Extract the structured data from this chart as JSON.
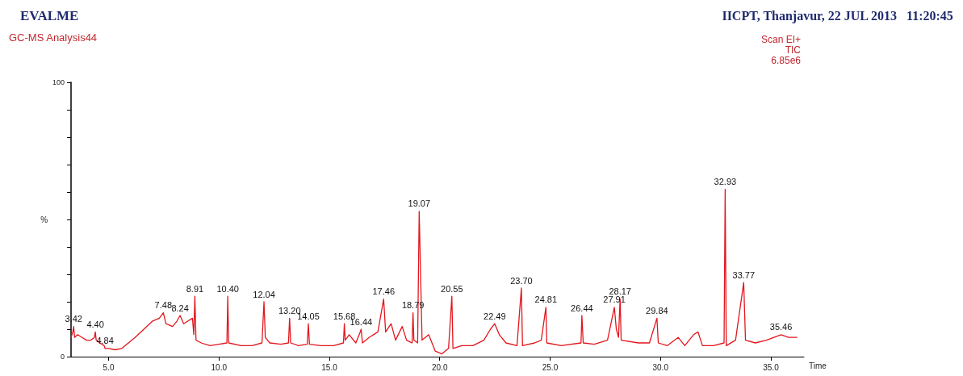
{
  "chart_data": {
    "type": "line",
    "title": "EVALME",
    "subtitle": "GC-MS Analysis44",
    "xlabel": "Time",
    "ylabel": "%",
    "x": [
      3.3,
      3.38,
      3.42,
      3.46,
      3.6,
      3.8,
      4.0,
      4.2,
      4.36,
      4.4,
      4.44,
      4.6,
      4.8,
      4.84,
      5.0,
      5.3,
      5.6,
      5.9,
      6.2,
      6.6,
      7.0,
      7.3,
      7.48,
      7.6,
      7.9,
      8.1,
      8.24,
      8.4,
      8.6,
      8.8,
      8.86,
      8.91,
      8.96,
      9.2,
      9.6,
      10.0,
      10.36,
      10.4,
      10.44,
      11.0,
      11.5,
      11.95,
      12.04,
      12.1,
      12.3,
      12.8,
      13.15,
      13.2,
      13.25,
      13.6,
      14.0,
      14.05,
      14.1,
      14.6,
      15.2,
      15.64,
      15.68,
      15.72,
      15.9,
      16.2,
      16.4,
      16.44,
      16.5,
      16.8,
      17.2,
      17.46,
      17.55,
      17.8,
      18.0,
      18.3,
      18.5,
      18.75,
      18.79,
      18.83,
      19.0,
      19.07,
      19.2,
      19.5,
      19.8,
      20.1,
      20.4,
      20.55,
      20.6,
      21.0,
      21.5,
      22.0,
      22.3,
      22.49,
      22.7,
      23.0,
      23.5,
      23.7,
      23.75,
      24.3,
      24.6,
      24.81,
      24.85,
      25.5,
      26.4,
      26.44,
      26.5,
      27.0,
      27.6,
      27.91,
      28.0,
      28.1,
      28.17,
      28.22,
      29.0,
      29.5,
      29.84,
      29.9,
      30.3,
      30.8,
      31.1,
      31.5,
      31.7,
      31.9,
      32.4,
      32.88,
      32.93,
      32.98,
      33.4,
      33.77,
      33.85,
      34.3,
      34.8,
      35.46,
      35.8,
      36.2
    ],
    "series": [
      {
        "color": "#e3161d",
        "values": [
          7,
          9,
          11,
          7,
          8,
          7,
          6,
          6,
          7,
          9,
          6,
          5,
          4,
          3,
          3,
          2.5,
          3,
          5,
          7,
          10,
          13,
          14,
          16,
          12,
          11,
          13,
          15,
          12,
          13,
          14,
          8,
          22,
          6,
          5,
          4,
          4.5,
          5,
          22,
          5,
          4,
          4,
          5,
          20,
          7,
          5,
          4.5,
          5,
          14,
          5,
          4,
          4.5,
          12,
          4.5,
          4,
          4,
          5,
          12,
          6,
          8,
          5,
          9,
          10,
          5,
          7,
          9,
          21,
          9,
          12,
          6,
          11,
          6,
          5,
          16,
          6,
          5,
          53,
          6,
          8,
          2,
          1,
          3,
          22,
          3,
          4,
          4,
          6,
          10,
          12,
          8,
          5,
          4,
          25,
          4,
          5,
          6,
          18,
          5,
          4,
          5,
          15,
          5,
          4.5,
          6,
          18,
          10,
          7,
          21,
          6,
          5,
          5,
          14,
          5,
          4,
          7,
          4,
          8,
          9,
          4,
          4,
          5,
          61,
          4,
          6,
          27,
          6,
          5,
          6,
          8,
          7,
          7
        ]
      }
    ],
    "xlim": [
      3.3,
      36.5
    ],
    "xticks": [
      {
        "value": 5,
        "label": "5.0"
      },
      {
        "value": 10,
        "label": "10.0"
      },
      {
        "value": 15,
        "label": "15.0"
      },
      {
        "value": 20,
        "label": "20.0"
      },
      {
        "value": 25,
        "label": "25.0"
      },
      {
        "value": 30,
        "label": "30.0"
      },
      {
        "value": 35,
        "label": "35.0"
      }
    ],
    "ylim": [
      0,
      100
    ],
    "yticks": [
      0,
      {
        "value": 10,
        "label": null
      },
      {
        "value": 20,
        "label": null
      },
      {
        "value": 30,
        "label": null
      },
      {
        "value": 40,
        "label": null
      },
      {
        "value": 50,
        "label": null
      },
      {
        "value": 60,
        "label": null
      },
      {
        "value": 70,
        "label": null
      },
      {
        "value": 80,
        "label": null
      },
      {
        "value": 90,
        "label": null
      },
      100
    ],
    "annotations": [
      "IICPT, Thanjavur, 22 JUL 2013   11:20:45",
      "Scan EI+",
      "TIC",
      "6.85e6",
      {
        "text": "3.42",
        "x": 3.42,
        "y": 11
      },
      {
        "text": "4.40",
        "x": 4.4,
        "y": 9
      },
      {
        "text": "4.84",
        "x": 4.84,
        "y": 3
      },
      {
        "text": "7.48",
        "x": 7.48,
        "y": 16
      },
      {
        "text": "8.24",
        "x": 8.24,
        "y": 15
      },
      {
        "text": "8.91",
        "x": 8.91,
        "y": 22
      },
      {
        "text": "10.40",
        "x": 10.4,
        "y": 22
      },
      {
        "text": "12.04",
        "x": 12.04,
        "y": 20
      },
      {
        "text": "13.20",
        "x": 13.2,
        "y": 14
      },
      {
        "text": "14.05",
        "x": 14.05,
        "y": 12
      },
      {
        "text": "15.68",
        "x": 15.68,
        "y": 12
      },
      {
        "text": "16.44",
        "x": 16.44,
        "y": 10
      },
      {
        "text": "17.46",
        "x": 17.46,
        "y": 21
      },
      {
        "text": "18.79",
        "x": 18.79,
        "y": 16
      },
      {
        "text": "19.07",
        "x": 19.07,
        "y": 53
      },
      {
        "text": "20.55",
        "x": 20.55,
        "y": 22
      },
      {
        "text": "22.49",
        "x": 22.49,
        "y": 12
      },
      {
        "text": "23.70",
        "x": 23.7,
        "y": 25
      },
      {
        "text": "24.81",
        "x": 24.81,
        "y": 18
      },
      {
        "text": "26.44",
        "x": 26.44,
        "y": 15
      },
      {
        "text": "27.91",
        "x": 27.91,
        "y": 18
      },
      {
        "text": "28.17",
        "x": 28.17,
        "y": 21
      },
      {
        "text": "29.84",
        "x": 29.84,
        "y": 14
      },
      {
        "text": "32.93",
        "x": 32.93,
        "y": 61
      },
      {
        "text": "33.77",
        "x": 33.77,
        "y": 27
      },
      {
        "text": "35.46",
        "x": 35.46,
        "y": 8
      }
    ]
  }
}
